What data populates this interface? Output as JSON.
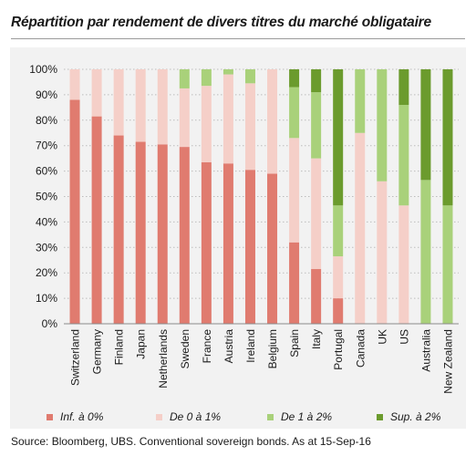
{
  "chart_data": {
    "type": "bar",
    "stacked": true,
    "title": "Répartition par rendement de divers titres du marché obligataire",
    "categories": [
      "Switzerland",
      "Germany",
      "Finland",
      "Japan",
      "Netherlands",
      "Sweden",
      "France",
      "Austria",
      "Ireland",
      "Belgium",
      "Spain",
      "Italy",
      "Portugal",
      "Canada",
      "UK",
      "US",
      "Australia",
      "New Zealand"
    ],
    "series": [
      {
        "name": "Inf. à 0%",
        "color": "#e07b6f",
        "values": [
          88,
          81.5,
          74,
          71.5,
          70.5,
          69.5,
          63.5,
          63,
          60.5,
          59,
          32,
          21.5,
          10,
          0,
          0,
          0,
          0,
          0
        ]
      },
      {
        "name": "De 0 à 1%",
        "color": "#f5cfc8",
        "values": [
          12,
          18.5,
          26,
          28.5,
          29.5,
          23,
          30,
          35,
          34,
          41,
          41,
          43.5,
          16.5,
          75,
          56,
          46.5,
          0,
          0
        ]
      },
      {
        "name": "De 1 à 2%",
        "color": "#a9d17a",
        "values": [
          0,
          0,
          0,
          0,
          0,
          7.5,
          6.5,
          2,
          5.5,
          0,
          20,
          26,
          20,
          25,
          44,
          39.5,
          56.5,
          46.5
        ]
      },
      {
        "name": "Sup. à 2%",
        "color": "#6b9b2d",
        "values": [
          0,
          0,
          0,
          0,
          0,
          0,
          0,
          0,
          0,
          0,
          7,
          9,
          53.5,
          0,
          0,
          14,
          43.5,
          53.5
        ]
      }
    ],
    "y_ticks": [
      "0%",
      "10%",
      "20%",
      "30%",
      "40%",
      "50%",
      "60%",
      "70%",
      "80%",
      "90%",
      "100%"
    ],
    "ylim": [
      0,
      100
    ],
    "grid": true,
    "legend_position": "bottom"
  },
  "source": "Source:  Bloomberg, UBS. Conventional sovereign bonds. As at 15-Sep-16"
}
